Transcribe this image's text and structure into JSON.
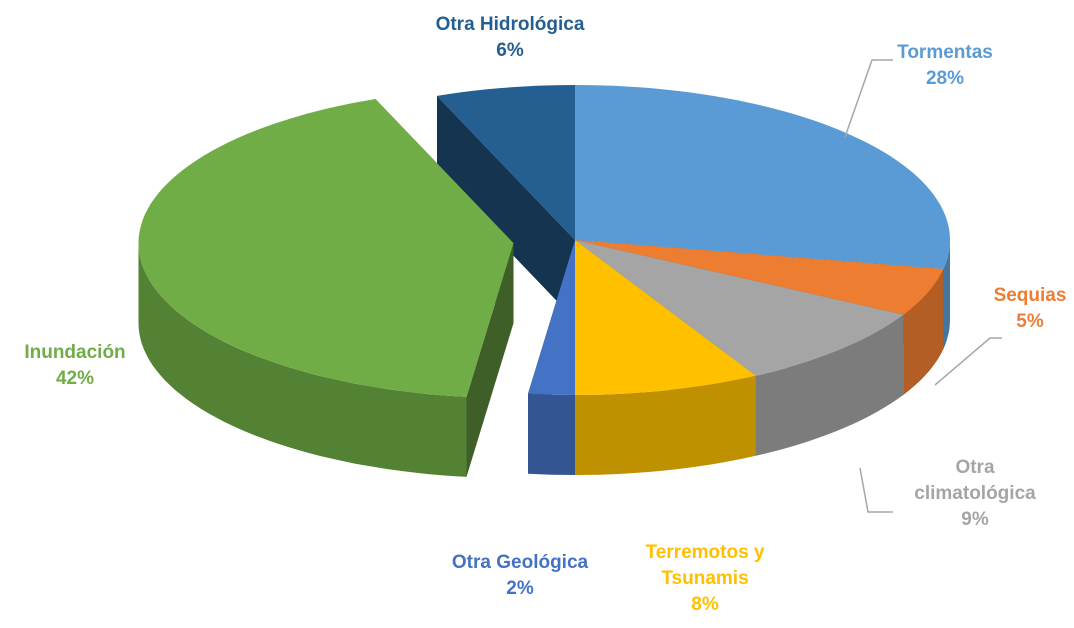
{
  "chart_data": {
    "type": "pie",
    "categories": [
      "Tormentas",
      "Sequias",
      "Otra climatológica",
      "Terremotos y Tsunamis",
      "Otra Geológica",
      "Inundación",
      "Otra Hidrológica"
    ],
    "values": [
      28,
      5,
      9,
      8,
      2,
      42,
      6
    ],
    "value_labels": [
      "28%",
      "5%",
      "9%",
      "8%",
      "2%",
      "42%",
      "6%"
    ],
    "colors": [
      "#5b9bd5",
      "#ed7d31",
      "#a5a5a5",
      "#ffc000",
      "#4472c4",
      "#70ad47",
      "#255e91"
    ],
    "exploded": "Inundación"
  }
}
